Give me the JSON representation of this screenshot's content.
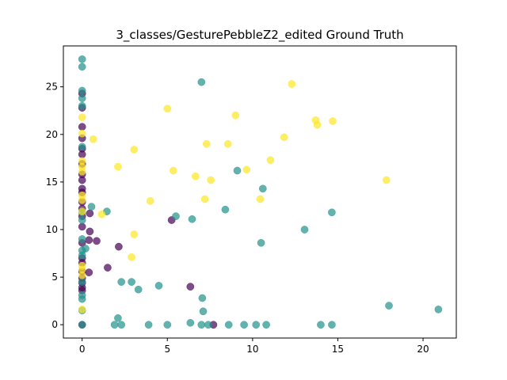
{
  "chart_data": {
    "type": "scatter",
    "title": "3_classes/GesturePebbleZ2_edited Ground Truth",
    "xlabel": "",
    "ylabel": "",
    "xlim": [
      -1.1,
      21.95
    ],
    "ylim": [
      -1.4,
      29.3
    ],
    "xticks": [
      0,
      5,
      10,
      15,
      20
    ],
    "yticks": [
      0,
      5,
      10,
      15,
      20,
      25
    ],
    "grid": false,
    "legend": "none",
    "colors": {
      "class_0": "#440154",
      "class_1": "#21918c",
      "class_2": "#fde725"
    },
    "series": [
      {
        "color_key": "class_0",
        "points": [
          [
            0,
            24.3
          ],
          [
            0,
            22.8
          ],
          [
            0,
            20.8
          ],
          [
            0,
            19.6
          ],
          [
            0,
            18.5
          ],
          [
            0,
            17.9
          ],
          [
            0,
            16.9
          ],
          [
            0,
            15.8
          ],
          [
            0,
            15.2
          ],
          [
            0,
            14.3
          ],
          [
            0,
            13.9
          ],
          [
            0,
            12.9
          ],
          [
            0,
            12.2
          ],
          [
            0,
            11.4
          ],
          [
            0,
            10.3
          ],
          [
            0,
            8.6
          ],
          [
            0,
            7.0
          ],
          [
            0,
            6.5
          ],
          [
            0,
            5.6
          ],
          [
            0,
            4.9
          ],
          [
            0,
            4.4
          ],
          [
            0,
            3.9
          ],
          [
            0,
            3.6
          ],
          [
            0,
            0.0
          ],
          [
            0.4,
            8.9
          ],
          [
            0.4,
            5.5
          ],
          [
            0.45,
            11.7
          ],
          [
            0.45,
            9.8
          ],
          [
            0.85,
            8.8
          ],
          [
            1.5,
            6.0
          ],
          [
            2.15,
            8.2
          ],
          [
            5.25,
            11.0
          ],
          [
            6.35,
            4.0
          ],
          [
            7.7,
            0.0
          ]
        ]
      },
      {
        "color_key": "class_1",
        "points": [
          [
            0,
            27.9
          ],
          [
            0,
            27.1
          ],
          [
            0,
            24.6
          ],
          [
            0,
            23.8
          ],
          [
            0,
            23.0
          ],
          [
            0,
            18.7
          ],
          [
            0,
            11.8
          ],
          [
            0,
            11.0
          ],
          [
            0,
            9.0
          ],
          [
            0,
            7.8
          ],
          [
            0,
            7.3
          ],
          [
            0,
            4.5
          ],
          [
            0,
            3.1
          ],
          [
            0,
            2.7
          ],
          [
            0,
            1.5
          ],
          [
            0,
            0.0
          ],
          [
            0.2,
            8.0
          ],
          [
            0.55,
            12.4
          ],
          [
            1.45,
            11.9
          ],
          [
            1.9,
            0.0
          ],
          [
            2.1,
            0.7
          ],
          [
            2.3,
            4.5
          ],
          [
            2.3,
            0.0
          ],
          [
            2.9,
            4.5
          ],
          [
            3.3,
            3.7
          ],
          [
            3.9,
            0.0
          ],
          [
            4.5,
            4.1
          ],
          [
            5.0,
            0.0
          ],
          [
            5.5,
            11.4
          ],
          [
            6.35,
            0.2
          ],
          [
            6.45,
            11.1
          ],
          [
            7.0,
            25.5
          ],
          [
            7.0,
            0.0
          ],
          [
            7.05,
            2.8
          ],
          [
            7.1,
            1.4
          ],
          [
            7.4,
            0.0
          ],
          [
            8.4,
            12.1
          ],
          [
            8.6,
            0.0
          ],
          [
            9.1,
            16.2
          ],
          [
            9.5,
            0.0
          ],
          [
            10.2,
            0.0
          ],
          [
            10.5,
            8.6
          ],
          [
            10.6,
            14.3
          ],
          [
            10.8,
            0.0
          ],
          [
            13.05,
            10.0
          ],
          [
            14.0,
            0.0
          ],
          [
            14.65,
            11.8
          ],
          [
            14.65,
            0.0
          ],
          [
            18.0,
            2.0
          ],
          [
            20.9,
            1.6
          ]
        ]
      },
      {
        "color_key": "class_2",
        "points": [
          [
            0,
            21.8
          ],
          [
            0,
            20.1
          ],
          [
            0,
            17.2
          ],
          [
            0,
            16.6
          ],
          [
            0,
            16.1
          ],
          [
            0,
            13.6
          ],
          [
            0,
            13.1
          ],
          [
            0,
            11.9
          ],
          [
            0,
            6.2
          ],
          [
            0,
            5.8
          ],
          [
            0,
            5.2
          ],
          [
            0,
            1.6
          ],
          [
            0.65,
            19.5
          ],
          [
            1.15,
            11.6
          ],
          [
            2.1,
            16.6
          ],
          [
            2.9,
            7.1
          ],
          [
            3.05,
            18.4
          ],
          [
            3.05,
            9.5
          ],
          [
            4.0,
            13.0
          ],
          [
            5.0,
            22.7
          ],
          [
            5.35,
            16.2
          ],
          [
            6.65,
            15.6
          ],
          [
            7.2,
            13.2
          ],
          [
            7.3,
            19.0
          ],
          [
            7.55,
            15.2
          ],
          [
            8.55,
            19.0
          ],
          [
            9.0,
            22.0
          ],
          [
            9.65,
            16.3
          ],
          [
            10.45,
            13.2
          ],
          [
            11.05,
            17.3
          ],
          [
            11.85,
            19.7
          ],
          [
            12.3,
            25.3
          ],
          [
            13.7,
            21.5
          ],
          [
            13.8,
            21.0
          ],
          [
            14.7,
            21.4
          ],
          [
            17.85,
            15.2
          ]
        ]
      }
    ]
  }
}
